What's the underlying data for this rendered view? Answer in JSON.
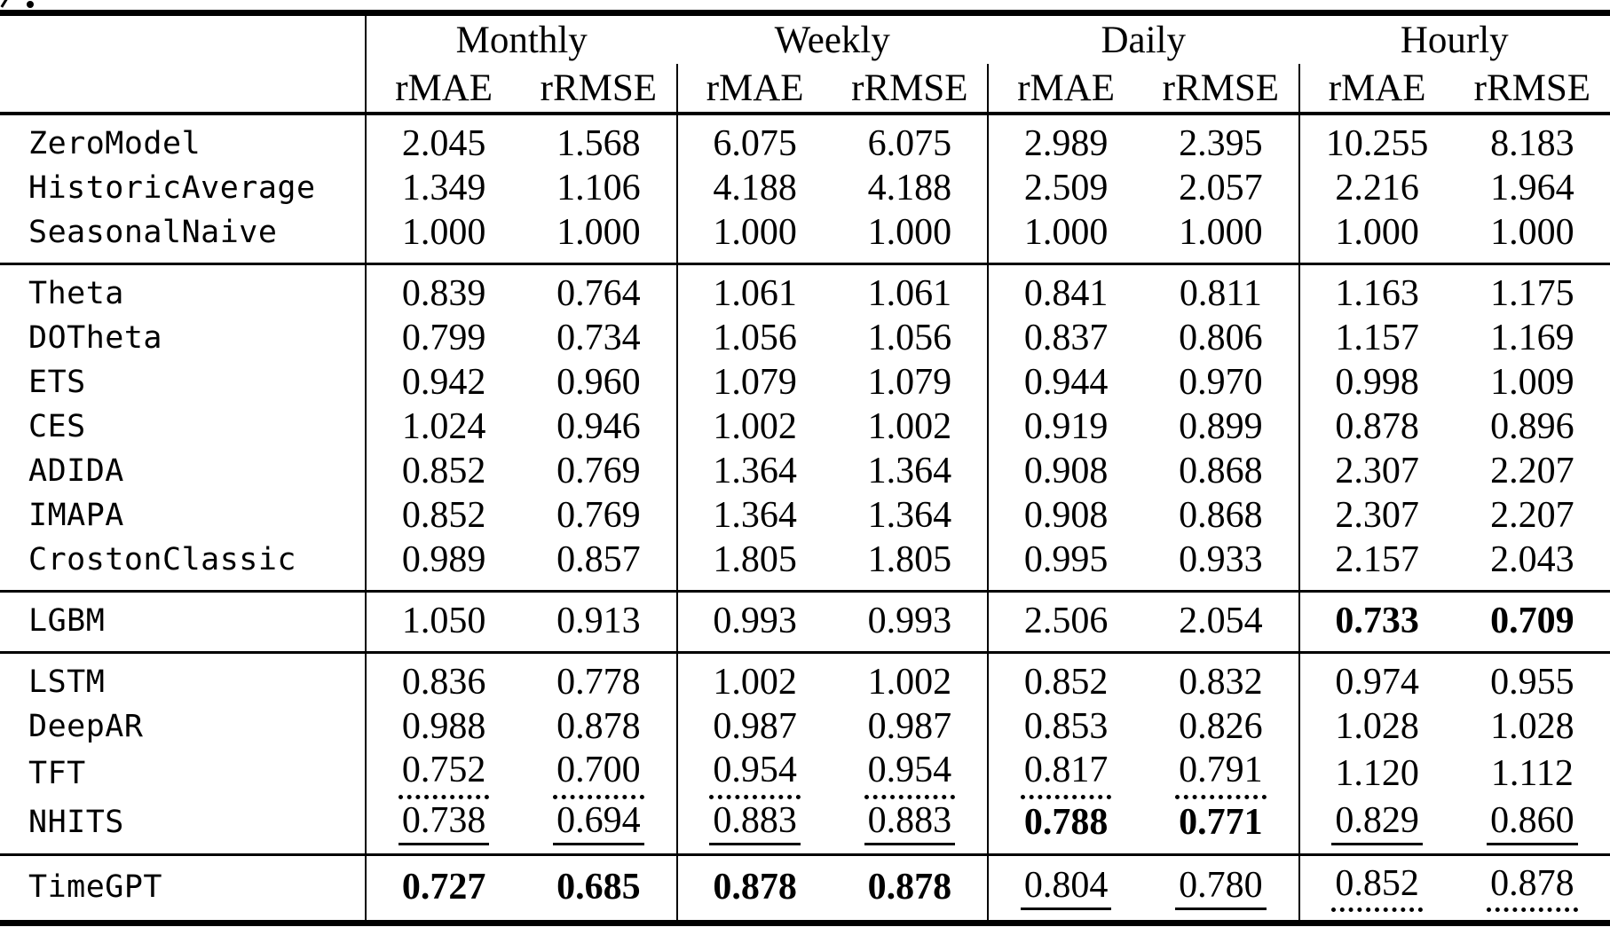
{
  "table": {
    "header": {
      "model_column_label": "",
      "freq_groups": [
        {
          "label": "Monthly"
        },
        {
          "label": "Weekly"
        },
        {
          "label": "Daily"
        },
        {
          "label": "Hourly"
        }
      ],
      "metric_labels": [
        "rMAE",
        "rRMSE"
      ]
    },
    "style_colors": {
      "text": "#000000",
      "background": "#ffffff",
      "rule": "#000000"
    },
    "groups": [
      {
        "name": "baseline-models",
        "rows": [
          {
            "model": "ZeroModel",
            "values": [
              {
                "v": "2.045",
                "style": "plain"
              },
              {
                "v": "1.568",
                "style": "plain"
              },
              {
                "v": "6.075",
                "style": "plain"
              },
              {
                "v": "6.075",
                "style": "plain"
              },
              {
                "v": "2.989",
                "style": "plain"
              },
              {
                "v": "2.395",
                "style": "plain"
              },
              {
                "v": "10.255",
                "style": "plain"
              },
              {
                "v": "8.183",
                "style": "plain"
              }
            ]
          },
          {
            "model": "HistoricAverage",
            "values": [
              {
                "v": "1.349",
                "style": "plain"
              },
              {
                "v": "1.106",
                "style": "plain"
              },
              {
                "v": "4.188",
                "style": "plain"
              },
              {
                "v": "4.188",
                "style": "plain"
              },
              {
                "v": "2.509",
                "style": "plain"
              },
              {
                "v": "2.057",
                "style": "plain"
              },
              {
                "v": "2.216",
                "style": "plain"
              },
              {
                "v": "1.964",
                "style": "plain"
              }
            ]
          },
          {
            "model": "SeasonalNaive",
            "values": [
              {
                "v": "1.000",
                "style": "plain"
              },
              {
                "v": "1.000",
                "style": "plain"
              },
              {
                "v": "1.000",
                "style": "plain"
              },
              {
                "v": "1.000",
                "style": "plain"
              },
              {
                "v": "1.000",
                "style": "plain"
              },
              {
                "v": "1.000",
                "style": "plain"
              },
              {
                "v": "1.000",
                "style": "plain"
              },
              {
                "v": "1.000",
                "style": "plain"
              }
            ]
          }
        ]
      },
      {
        "name": "statistical-models",
        "rows": [
          {
            "model": "Theta",
            "values": [
              {
                "v": "0.839",
                "style": "plain"
              },
              {
                "v": "0.764",
                "style": "plain"
              },
              {
                "v": "1.061",
                "style": "plain"
              },
              {
                "v": "1.061",
                "style": "plain"
              },
              {
                "v": "0.841",
                "style": "plain"
              },
              {
                "v": "0.811",
                "style": "plain"
              },
              {
                "v": "1.163",
                "style": "plain"
              },
              {
                "v": "1.175",
                "style": "plain"
              }
            ]
          },
          {
            "model": "DOTheta",
            "values": [
              {
                "v": "0.799",
                "style": "plain"
              },
              {
                "v": "0.734",
                "style": "plain"
              },
              {
                "v": "1.056",
                "style": "plain"
              },
              {
                "v": "1.056",
                "style": "plain"
              },
              {
                "v": "0.837",
                "style": "plain"
              },
              {
                "v": "0.806",
                "style": "plain"
              },
              {
                "v": "1.157",
                "style": "plain"
              },
              {
                "v": "1.169",
                "style": "plain"
              }
            ]
          },
          {
            "model": "ETS",
            "values": [
              {
                "v": "0.942",
                "style": "plain"
              },
              {
                "v": "0.960",
                "style": "plain"
              },
              {
                "v": "1.079",
                "style": "plain"
              },
              {
                "v": "1.079",
                "style": "plain"
              },
              {
                "v": "0.944",
                "style": "plain"
              },
              {
                "v": "0.970",
                "style": "plain"
              },
              {
                "v": "0.998",
                "style": "plain"
              },
              {
                "v": "1.009",
                "style": "plain"
              }
            ]
          },
          {
            "model": "CES",
            "values": [
              {
                "v": "1.024",
                "style": "plain"
              },
              {
                "v": "0.946",
                "style": "plain"
              },
              {
                "v": "1.002",
                "style": "plain"
              },
              {
                "v": "1.002",
                "style": "plain"
              },
              {
                "v": "0.919",
                "style": "plain"
              },
              {
                "v": "0.899",
                "style": "plain"
              },
              {
                "v": "0.878",
                "style": "plain"
              },
              {
                "v": "0.896",
                "style": "plain"
              }
            ]
          },
          {
            "model": "ADIDA",
            "values": [
              {
                "v": "0.852",
                "style": "plain"
              },
              {
                "v": "0.769",
                "style": "plain"
              },
              {
                "v": "1.364",
                "style": "plain"
              },
              {
                "v": "1.364",
                "style": "plain"
              },
              {
                "v": "0.908",
                "style": "plain"
              },
              {
                "v": "0.868",
                "style": "plain"
              },
              {
                "v": "2.307",
                "style": "plain"
              },
              {
                "v": "2.207",
                "style": "plain"
              }
            ]
          },
          {
            "model": "IMAPA",
            "values": [
              {
                "v": "0.852",
                "style": "plain"
              },
              {
                "v": "0.769",
                "style": "plain"
              },
              {
                "v": "1.364",
                "style": "plain"
              },
              {
                "v": "1.364",
                "style": "plain"
              },
              {
                "v": "0.908",
                "style": "plain"
              },
              {
                "v": "0.868",
                "style": "plain"
              },
              {
                "v": "2.307",
                "style": "plain"
              },
              {
                "v": "2.207",
                "style": "plain"
              }
            ]
          },
          {
            "model": "CrostonClassic",
            "values": [
              {
                "v": "0.989",
                "style": "plain"
              },
              {
                "v": "0.857",
                "style": "plain"
              },
              {
                "v": "1.805",
                "style": "plain"
              },
              {
                "v": "1.805",
                "style": "plain"
              },
              {
                "v": "0.995",
                "style": "plain"
              },
              {
                "v": "0.933",
                "style": "plain"
              },
              {
                "v": "2.157",
                "style": "plain"
              },
              {
                "v": "2.043",
                "style": "plain"
              }
            ]
          }
        ]
      },
      {
        "name": "machine-learning-models",
        "rows": [
          {
            "model": "LGBM",
            "values": [
              {
                "v": "1.050",
                "style": "plain"
              },
              {
                "v": "0.913",
                "style": "plain"
              },
              {
                "v": "0.993",
                "style": "plain"
              },
              {
                "v": "0.993",
                "style": "plain"
              },
              {
                "v": "2.506",
                "style": "plain"
              },
              {
                "v": "2.054",
                "style": "plain"
              },
              {
                "v": "0.733",
                "style": "bold"
              },
              {
                "v": "0.709",
                "style": "bold"
              }
            ]
          }
        ]
      },
      {
        "name": "deep-learning-models",
        "rows": [
          {
            "model": "LSTM",
            "values": [
              {
                "v": "0.836",
                "style": "plain"
              },
              {
                "v": "0.778",
                "style": "plain"
              },
              {
                "v": "1.002",
                "style": "plain"
              },
              {
                "v": "1.002",
                "style": "plain"
              },
              {
                "v": "0.852",
                "style": "plain"
              },
              {
                "v": "0.832",
                "style": "plain"
              },
              {
                "v": "0.974",
                "style": "plain"
              },
              {
                "v": "0.955",
                "style": "plain"
              }
            ]
          },
          {
            "model": "DeepAR",
            "values": [
              {
                "v": "0.988",
                "style": "plain"
              },
              {
                "v": "0.878",
                "style": "plain"
              },
              {
                "v": "0.987",
                "style": "plain"
              },
              {
                "v": "0.987",
                "style": "plain"
              },
              {
                "v": "0.853",
                "style": "plain"
              },
              {
                "v": "0.826",
                "style": "plain"
              },
              {
                "v": "1.028",
                "style": "plain"
              },
              {
                "v": "1.028",
                "style": "plain"
              }
            ]
          },
          {
            "model": "TFT",
            "values": [
              {
                "v": "0.752",
                "style": "dotted"
              },
              {
                "v": "0.700",
                "style": "dotted"
              },
              {
                "v": "0.954",
                "style": "dotted"
              },
              {
                "v": "0.954",
                "style": "dotted"
              },
              {
                "v": "0.817",
                "style": "dotted"
              },
              {
                "v": "0.791",
                "style": "dotted"
              },
              {
                "v": "1.120",
                "style": "plain"
              },
              {
                "v": "1.112",
                "style": "plain"
              }
            ]
          },
          {
            "model": "NHITS",
            "values": [
              {
                "v": "0.738",
                "style": "underline"
              },
              {
                "v": "0.694",
                "style": "underline"
              },
              {
                "v": "0.883",
                "style": "underline"
              },
              {
                "v": "0.883",
                "style": "underline"
              },
              {
                "v": "0.788",
                "style": "bold"
              },
              {
                "v": "0.771",
                "style": "bold"
              },
              {
                "v": "0.829",
                "style": "underline"
              },
              {
                "v": "0.860",
                "style": "underline"
              }
            ]
          }
        ]
      },
      {
        "name": "timegpt",
        "rows": [
          {
            "model": "TimeGPT",
            "values": [
              {
                "v": "0.727",
                "style": "bold"
              },
              {
                "v": "0.685",
                "style": "bold"
              },
              {
                "v": "0.878",
                "style": "bold"
              },
              {
                "v": "0.878",
                "style": "bold"
              },
              {
                "v": "0.804",
                "style": "underline"
              },
              {
                "v": "0.780",
                "style": "underline"
              },
              {
                "v": "0.852",
                "style": "dotted"
              },
              {
                "v": "0.878",
                "style": "dotted"
              }
            ]
          }
        ]
      }
    ]
  }
}
